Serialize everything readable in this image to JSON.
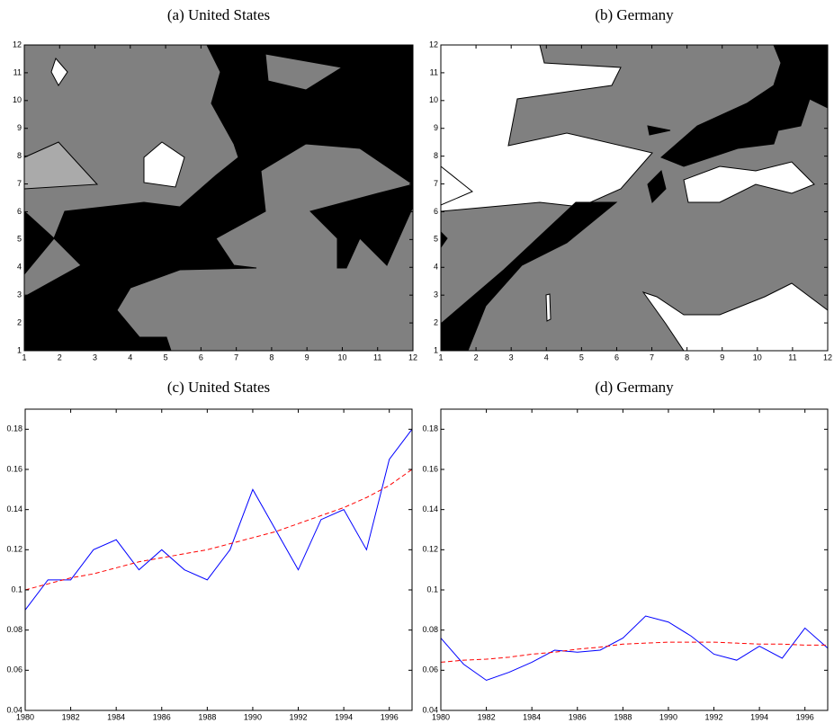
{
  "chart_data": [
    {
      "type": "contour",
      "title": "(a) United States",
      "xlim": [
        1,
        12
      ],
      "ylim": [
        1,
        12
      ],
      "xticks": [
        1,
        2,
        3,
        4,
        5,
        6,
        7,
        8,
        9,
        10,
        11,
        12
      ],
      "yticks": [
        1,
        2,
        3,
        4,
        5,
        6,
        7,
        8,
        9,
        10,
        11,
        12
      ]
    },
    {
      "type": "contour",
      "title": "(b) Germany",
      "xlim": [
        1,
        12
      ],
      "ylim": [
        1,
        12
      ],
      "xticks": [
        1,
        2,
        3,
        4,
        5,
        6,
        7,
        8,
        9,
        10,
        11,
        12
      ],
      "yticks": [
        1,
        2,
        3,
        4,
        5,
        6,
        7,
        8,
        9,
        10,
        11,
        12
      ]
    },
    {
      "type": "line",
      "title": "(c) United States",
      "x": [
        1980,
        1981,
        1982,
        1983,
        1984,
        1985,
        1986,
        1987,
        1988,
        1989,
        1990,
        1991,
        1992,
        1993,
        1994,
        1995,
        1996,
        1997
      ],
      "series": [
        {
          "color": "#0000ff",
          "style": "solid",
          "values": [
            0.09,
            0.105,
            0.105,
            0.12,
            0.125,
            0.11,
            0.12,
            0.11,
            0.105,
            0.12,
            0.15,
            0.13,
            0.11,
            0.135,
            0.14,
            0.12,
            0.165,
            0.18
          ]
        },
        {
          "color": "#ff0000",
          "style": "dashed",
          "values": [
            0.1,
            0.103,
            0.106,
            0.108,
            0.111,
            0.114,
            0.116,
            0.118,
            0.12,
            0.123,
            0.126,
            0.129,
            0.133,
            0.137,
            0.141,
            0.146,
            0.152,
            0.16
          ]
        }
      ],
      "xlim": [
        1980,
        1997
      ],
      "ylim": [
        0.04,
        0.19
      ],
      "xticks": [
        1980,
        1982,
        1984,
        1986,
        1988,
        1990,
        1992,
        1994,
        1996
      ],
      "yticks": [
        0.04,
        0.06,
        0.08,
        0.1,
        0.12,
        0.14,
        0.16,
        0.18
      ]
    },
    {
      "type": "line",
      "title": "(d) Germany",
      "x": [
        1980,
        1981,
        1982,
        1983,
        1984,
        1985,
        1986,
        1987,
        1988,
        1989,
        1990,
        1991,
        1992,
        1993,
        1994,
        1995,
        1996,
        1997
      ],
      "series": [
        {
          "color": "#0000ff",
          "style": "solid",
          "values": [
            0.076,
            0.063,
            0.055,
            0.059,
            0.064,
            0.07,
            0.069,
            0.07,
            0.076,
            0.087,
            0.084,
            0.077,
            0.068,
            0.065,
            0.072,
            0.066,
            0.081,
            0.071
          ]
        },
        {
          "color": "#ff0000",
          "style": "dashed",
          "values": [
            0.064,
            0.065,
            0.0655,
            0.0665,
            0.068,
            0.069,
            0.0705,
            0.0715,
            0.073,
            0.0735,
            0.074,
            0.074,
            0.074,
            0.0735,
            0.073,
            0.073,
            0.0725,
            0.0725
          ]
        }
      ],
      "xlim": [
        1980,
        1997
      ],
      "ylim": [
        0.04,
        0.19
      ],
      "xticks": [
        1980,
        1982,
        1984,
        1986,
        1988,
        1990,
        1992,
        1994,
        1996
      ],
      "yticks": [
        0.04,
        0.06,
        0.08,
        0.1,
        0.12,
        0.14,
        0.16,
        0.18
      ]
    }
  ]
}
